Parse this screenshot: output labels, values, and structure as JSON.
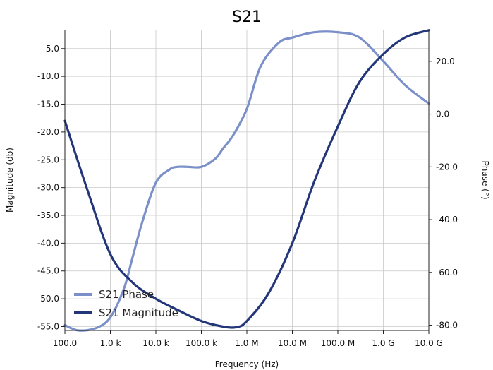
{
  "chart_data": {
    "type": "line",
    "title": "S21",
    "xlabel": "Frequency (Hz)",
    "ylabel": "Magnitude (db)",
    "y2label": "Phase (°)",
    "x_scale": "log",
    "xlim": [
      100,
      10000000000
    ],
    "ylim": [
      -55.7,
      -1.6
    ],
    "y2lim": [
      -82,
      32
    ],
    "grid": true,
    "legend_position": "bottom-left",
    "x_ticks": [
      {
        "value": 100,
        "label": "100.0"
      },
      {
        "value": 1000,
        "label": "1.0 k"
      },
      {
        "value": 10000,
        "label": "10.0 k"
      },
      {
        "value": 100000,
        "label": "100.0 k"
      },
      {
        "value": 1000000,
        "label": "1.0 M"
      },
      {
        "value": 10000000,
        "label": "10.0 M"
      },
      {
        "value": 100000000,
        "label": "100.0 M"
      },
      {
        "value": 1000000000,
        "label": "1.0 G"
      },
      {
        "value": 10000000000,
        "label": "10.0 G"
      }
    ],
    "y_ticks": [
      {
        "value": -5,
        "label": "-5.0"
      },
      {
        "value": -10,
        "label": "-10.0"
      },
      {
        "value": -15,
        "label": "-15.0"
      },
      {
        "value": -20,
        "label": "-20.0"
      },
      {
        "value": -25,
        "label": "-25.0"
      },
      {
        "value": -30,
        "label": "-30.0"
      },
      {
        "value": -35,
        "label": "-35.0"
      },
      {
        "value": -40,
        "label": "-40.0"
      },
      {
        "value": -45,
        "label": "-45.0"
      },
      {
        "value": -50,
        "label": "-50.0"
      },
      {
        "value": -55,
        "label": "-55.0"
      }
    ],
    "y2_ticks": [
      {
        "value": 20,
        "label": "20.0"
      },
      {
        "value": 0,
        "label": "0.0"
      },
      {
        "value": -20,
        "label": "-20.0"
      },
      {
        "value": -40,
        "label": "-40.0"
      },
      {
        "value": -60,
        "label": "-60.0"
      },
      {
        "value": -80,
        "label": "-80.0"
      }
    ],
    "series": [
      {
        "name": "S21 Phase",
        "axis": "right",
        "color": "#7b90c9",
        "x": [
          100,
          200,
          500,
          1000,
          2000,
          3000,
          5000,
          10000,
          20000,
          30000,
          50000,
          100000,
          200000,
          300000,
          500000,
          1000000,
          2000000,
          5000000,
          10000000,
          30000000,
          100000000,
          300000000,
          1000000000,
          3000000000,
          10000000000
        ],
        "y": [
          -80,
          -82,
          -81,
          -77,
          -66,
          -55,
          -41,
          -26,
          -21,
          -20,
          -20,
          -20,
          -17,
          -13,
          -8,
          2,
          18,
          27,
          29,
          31,
          31,
          29,
          20,
          11,
          4
        ]
      },
      {
        "name": "S21 Magnitude",
        "axis": "left",
        "color": "#233679",
        "x": [
          100,
          300,
          1000,
          3000,
          10000,
          30000,
          100000,
          300000,
          600000,
          1000000,
          3000000,
          10000000,
          30000000,
          100000000,
          300000000,
          1000000000,
          3000000000,
          10000000000
        ],
        "y": [
          -18,
          -30,
          -42,
          -47,
          -50,
          -52,
          -54,
          -55,
          -55.1,
          -54,
          -49,
          -40,
          -29,
          -19,
          -11,
          -6,
          -3,
          -1.7
        ]
      }
    ]
  }
}
